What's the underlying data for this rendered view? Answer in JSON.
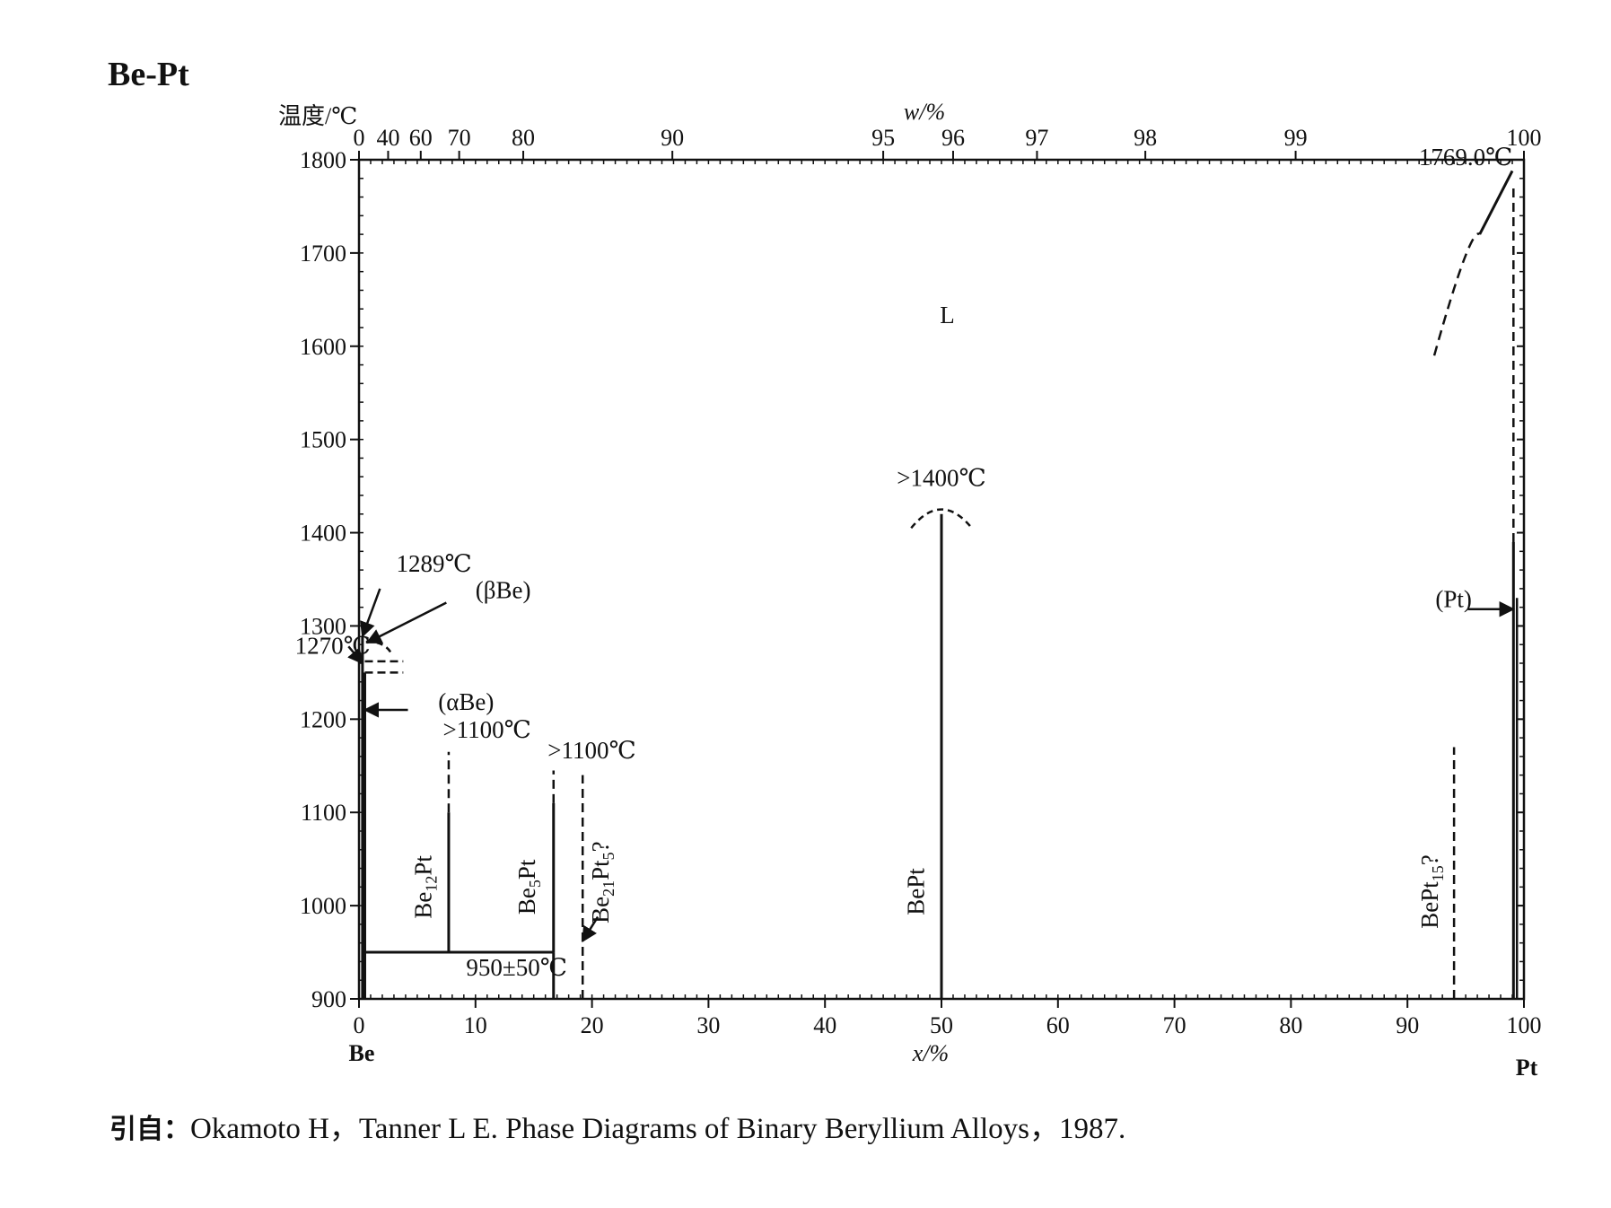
{
  "chart_data": {
    "type": "phase-diagram",
    "title": "Be-Pt",
    "ylabel": "温度/℃",
    "xlabel_bottom": "x/%",
    "xlabel_top": "w/%",
    "element_left": "Be",
    "element_right": "Pt",
    "ylim": [
      900,
      1800
    ],
    "xlim": [
      0,
      100
    ],
    "y_ticks": [
      "900",
      "1000",
      "1100",
      "1200",
      "1300",
      "1400",
      "1500",
      "1600",
      "1700",
      "1800"
    ],
    "x_ticks_bottom": [
      "0",
      "10",
      "20",
      "30",
      "40",
      "50",
      "60",
      "70",
      "80",
      "90",
      "100"
    ],
    "x_ticks_top": [
      {
        "label": "0",
        "at": 0
      },
      {
        "label": "40",
        "at": 2.5
      },
      {
        "label": "60",
        "at": 5.3
      },
      {
        "label": "70",
        "at": 8.6
      },
      {
        "label": "80",
        "at": 14.1
      },
      {
        "label": "90",
        "at": 26.9
      },
      {
        "label": "95",
        "at": 45
      },
      {
        "label": "96",
        "at": 51
      },
      {
        "label": "97",
        "at": 58.2
      },
      {
        "label": "98",
        "at": 67.5
      },
      {
        "label": "99",
        "at": 80.4
      },
      {
        "label": "100",
        "at": 100
      }
    ],
    "phase_regions": [
      {
        "label": "L",
        "x": 50.5,
        "y": 1625
      }
    ],
    "compounds": [
      {
        "name": "Be12Pt",
        "base": "Be",
        "sub": "12",
        "suffix": "Pt",
        "x": 7.7,
        "solid_top": 1100,
        "dashed_top": 1165
      },
      {
        "name": "Be5Pt",
        "base": "Be",
        "sub": "5",
        "suffix": "Pt",
        "x": 16.7,
        "solid_top": 1110,
        "dashed_top": 1145
      },
      {
        "name": "Be21Pt5?",
        "base": "Be",
        "sub": "21",
        "suffix": "Pt",
        "sub2": "5",
        "q": "?",
        "x": 19.2,
        "solid_top": null,
        "dashed_top": 1140
      },
      {
        "name": "BePt",
        "base": "BePt",
        "x": 50,
        "solid_top": 1420,
        "dashed_top": null
      },
      {
        "name": "BePt15?",
        "base": "BePt",
        "sub": "15",
        "q": "?",
        "x": 94,
        "solid_top": null,
        "dashed_top": 1170
      }
    ],
    "annotations": [
      {
        "text": ">1400℃",
        "x": 50,
        "y": 1450
      },
      {
        "text": "1289℃",
        "x": 3.2,
        "y": 1358
      },
      {
        "text": "(βBe)",
        "x": 10,
        "y": 1330
      },
      {
        "text": "1270℃",
        "x": -5.5,
        "y": 1270
      },
      {
        "text": "(αBe)",
        "x": 6.8,
        "y": 1210
      },
      {
        "text": ">1100℃",
        "x": 7.2,
        "y": 1180
      },
      {
        "text": ">1100℃",
        "x": 16.2,
        "y": 1158
      },
      {
        "text": "950±50℃",
        "x": 9.2,
        "y": 925
      },
      {
        "text": "1769.0℃",
        "x": 95,
        "y": 1794
      },
      {
        "text": "(Pt)",
        "x": 92.4,
        "y": 1320
      }
    ],
    "eutectoid_line": {
      "y": 950,
      "x_from": 0.4,
      "x_to": 16.7
    },
    "liquidus_dashed": [
      [
        92.3,
        1590
      ],
      [
        96.2,
        1720
      ],
      [
        99.0,
        1788
      ]
    ]
  },
  "caption": {
    "prefix": "引自：",
    "text": "Okamoto H，Tanner L E. Phase Diagrams of Binary Beryllium Alloys，1987."
  }
}
